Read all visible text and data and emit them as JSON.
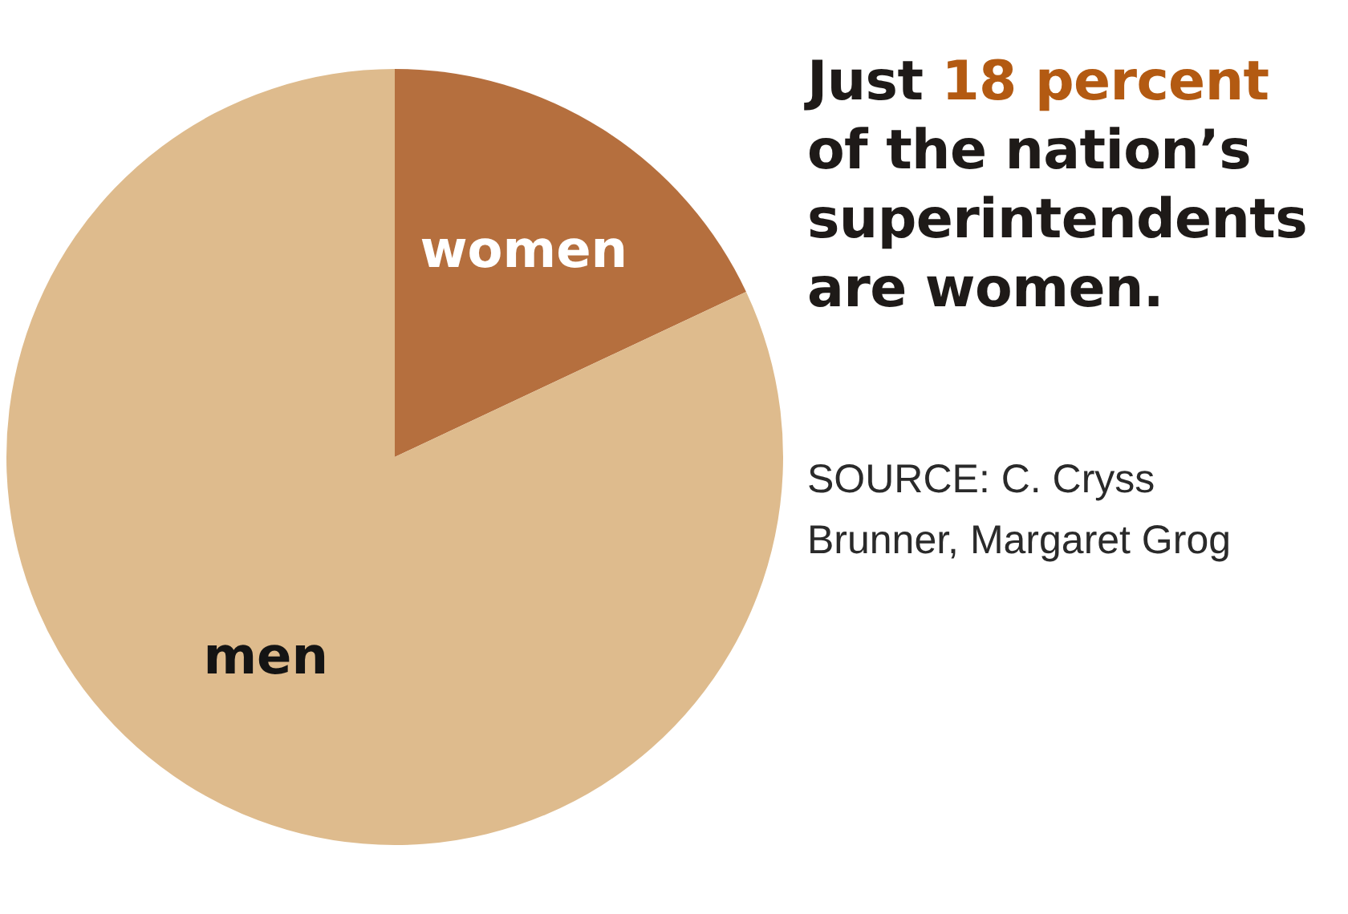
{
  "chart_data": {
    "type": "pie",
    "title": "Just 18 percent of the nation’s superintendents are women.",
    "categories": [
      "women",
      "men"
    ],
    "values": [
      18,
      82
    ],
    "colors": [
      "#b56f3e",
      "#debb8d"
    ],
    "annotations": [
      "SOURCE: C. Cryss Brunner, Margaret Grog"
    ]
  }
}
